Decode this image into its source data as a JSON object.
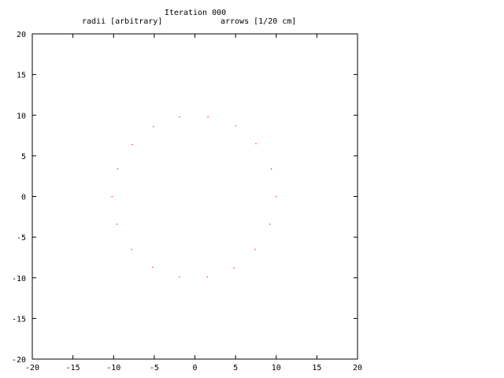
{
  "chart_data": {
    "type": "scatter",
    "title_line1": "Iteration 000",
    "title_left": "radii [arbitrary]",
    "title_right": "arrows [1/20 cm]",
    "xlim": [
      -20,
      20
    ],
    "ylim": [
      -20,
      20
    ],
    "x_ticks": [
      "-20",
      "-15",
      "-10",
      "-5",
      "0",
      "5",
      "10",
      "15",
      "20"
    ],
    "y_ticks": [
      "20",
      "15",
      "10",
      "5",
      "0",
      "-5",
      "-10",
      "-15",
      "-20"
    ],
    "grid": false,
    "point_color": "#ff0000",
    "points": [
      {
        "x": 10.0,
        "y": 0.0
      },
      {
        "x": 9.4,
        "y": 3.4
      },
      {
        "x": 7.5,
        "y": 6.5
      },
      {
        "x": 5.0,
        "y": 8.7
      },
      {
        "x": 1.6,
        "y": 9.8
      },
      {
        "x": -1.9,
        "y": 9.8
      },
      {
        "x": -5.1,
        "y": 8.6
      },
      {
        "x": -7.7,
        "y": 6.4
      },
      {
        "x": -9.5,
        "y": 3.4
      },
      {
        "x": -10.2,
        "y": 0.0
      },
      {
        "x": -9.6,
        "y": -3.4
      },
      {
        "x": -7.8,
        "y": -6.5
      },
      {
        "x": -5.2,
        "y": -8.7
      },
      {
        "x": -1.9,
        "y": -9.9
      },
      {
        "x": 1.5,
        "y": -9.9
      },
      {
        "x": 4.8,
        "y": -8.8
      },
      {
        "x": 7.4,
        "y": -6.5
      },
      {
        "x": 9.2,
        "y": -3.4
      }
    ]
  }
}
